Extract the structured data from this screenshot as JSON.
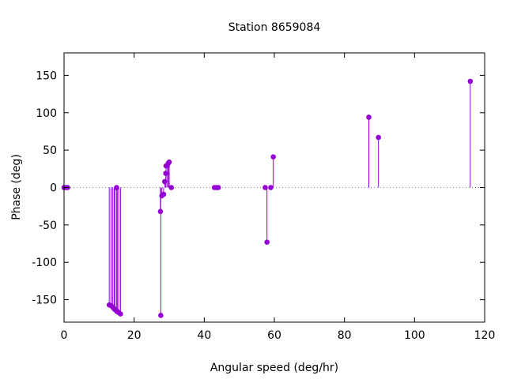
{
  "chart_data": {
    "type": "scatter",
    "title": "Station 8659084",
    "xlabel": "Angular speed (deg/hr)",
    "ylabel": "Phase (deg)",
    "xlim": [
      0,
      120
    ],
    "ylim": [
      -180,
      180
    ],
    "xticks": [
      0,
      20,
      40,
      60,
      80,
      100,
      120
    ],
    "yticks": [
      -150,
      -100,
      -50,
      0,
      50,
      100,
      150
    ],
    "xtick_labels": [
      "0",
      "20",
      "40",
      "60",
      "80",
      "100",
      "120"
    ],
    "ytick_labels": [
      "-150",
      "-100",
      "-50",
      "0",
      "50",
      "100",
      "150"
    ],
    "grid": false,
    "zero_line": "dotted",
    "style": "impulses with points",
    "color": "#9400d3",
    "series": [
      {
        "points": [
          [
            0.0,
            0
          ],
          [
            0.5,
            0
          ],
          [
            1.0,
            0
          ],
          [
            12.9,
            -157
          ],
          [
            13.4,
            -158
          ],
          [
            13.9,
            -160
          ],
          [
            14.3,
            -162
          ],
          [
            14.5,
            -163
          ],
          [
            14.96,
            -165
          ],
          [
            15.0,
            0
          ],
          [
            15.2,
            -166
          ],
          [
            15.6,
            -167
          ],
          [
            16.1,
            -169
          ],
          [
            27.5,
            -32
          ],
          [
            27.6,
            -171
          ],
          [
            27.9,
            -11
          ],
          [
            28.4,
            -9
          ],
          [
            28.7,
            8
          ],
          [
            29.0,
            19
          ],
          [
            29.1,
            29
          ],
          [
            29.5,
            30
          ],
          [
            29.8,
            33
          ],
          [
            30.0,
            34
          ],
          [
            30.6,
            0
          ],
          [
            42.9,
            0
          ],
          [
            43.5,
            0
          ],
          [
            44.0,
            0
          ],
          [
            57.4,
            0
          ],
          [
            57.9,
            -73
          ],
          [
            58.98,
            0
          ],
          [
            59.7,
            41
          ],
          [
            86.95,
            94
          ],
          [
            89.7,
            67
          ],
          [
            115.9,
            142
          ]
        ]
      }
    ]
  }
}
